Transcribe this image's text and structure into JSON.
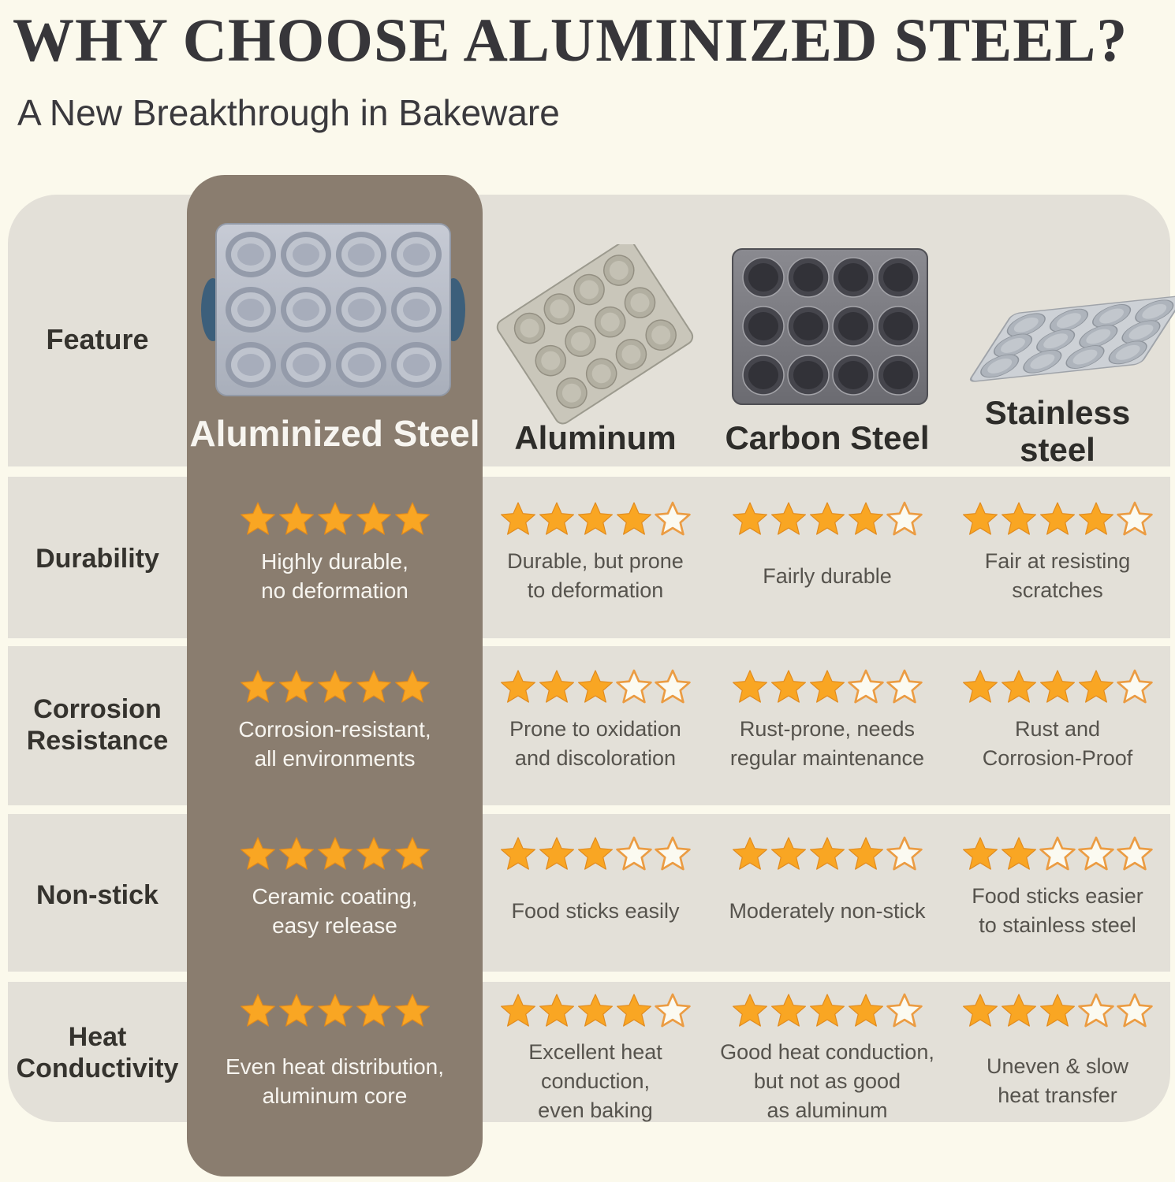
{
  "page": {
    "title": "WHY CHOOSE ALUMINIZED STEEL?",
    "subtitle": "A New Breakthrough in Bakeware"
  },
  "colors": {
    "bg": "#FBF9EC",
    "panel": "#E3E0D8",
    "hl": "#8A7D6F",
    "star-fill": "#F9A623",
    "star-stroke": "#E08A1E",
    "star-empty-fill": "#FBFAF1",
    "star-empty-stroke": "#EB9C43"
  },
  "table": {
    "feature_header": "Feature",
    "columns": [
      {
        "label": "Aluminized Steel",
        "highlighted": true,
        "image": "aluminized-steel-muffin-pan"
      },
      {
        "label": "Aluminum",
        "highlighted": false,
        "image": "aluminum-muffin-pan"
      },
      {
        "label": "Carbon Steel",
        "highlighted": false,
        "image": "carbon-steel-muffin-pan"
      },
      {
        "label": "Stainless\nsteel",
        "highlighted": false,
        "image": "stainless-steel-muffin-pan"
      }
    ],
    "rows": [
      {
        "feature": "Durability",
        "cells": [
          {
            "stars": 5,
            "text": "Highly durable,\nno deformation"
          },
          {
            "stars": 4,
            "text": "Durable, but prone\nto deformation"
          },
          {
            "stars": 4,
            "text": "Fairly durable"
          },
          {
            "stars": 4,
            "text": "Fair at resisting\nscratches"
          }
        ]
      },
      {
        "feature": "Corrosion\nResistance",
        "cells": [
          {
            "stars": 5,
            "text": "Corrosion-resistant,\nall environments"
          },
          {
            "stars": 3,
            "text": "Prone to oxidation\nand discoloration"
          },
          {
            "stars": 3,
            "text": "Rust-prone, needs\nregular maintenance"
          },
          {
            "stars": 4,
            "text": "Rust and\nCorrosion-Proof"
          }
        ]
      },
      {
        "feature": "Non-stick",
        "cells": [
          {
            "stars": 5,
            "text": "Ceramic coating,\neasy release"
          },
          {
            "stars": 3,
            "text": "Food sticks easily"
          },
          {
            "stars": 4,
            "text": "Moderately non-stick"
          },
          {
            "stars": 2,
            "text": "Food sticks easier\nto stainless steel"
          }
        ]
      },
      {
        "feature": "Heat\nConductivity",
        "cells": [
          {
            "stars": 5,
            "text": "Even heat distribution,\naluminum core"
          },
          {
            "stars": 4,
            "text": "Excellent heat\nconduction,\neven baking"
          },
          {
            "stars": 4,
            "text": "Good heat conduction,\nbut not as good\nas aluminum"
          },
          {
            "stars": 3,
            "text": "Uneven & slow\nheat transfer"
          }
        ]
      }
    ]
  },
  "chart_data": {
    "type": "table",
    "title": "WHY CHOOSE ALUMINIZED STEEL?",
    "subtitle": "A New Breakthrough in Bakeware",
    "categories": [
      "Aluminized Steel",
      "Aluminum",
      "Carbon Steel",
      "Stainless steel"
    ],
    "features": [
      "Durability",
      "Corrosion Resistance",
      "Non-stick",
      "Heat Conductivity"
    ],
    "ratings_out_of_5": {
      "Durability": [
        5,
        4,
        4,
        4
      ],
      "Corrosion Resistance": [
        5,
        3,
        3,
        4
      ],
      "Non-stick": [
        5,
        3,
        4,
        2
      ],
      "Heat Conductivity": [
        5,
        4,
        4,
        3
      ]
    },
    "notes": {
      "Durability": [
        "Highly durable, no deformation",
        "Durable, but prone to deformation",
        "Fairly durable",
        "Fair at resisting scratches"
      ],
      "Corrosion Resistance": [
        "Corrosion-resistant, all environments",
        "Prone to oxidation and discoloration",
        "Rust-prone, needs regular maintenance",
        "Rust and Corrosion-Proof"
      ],
      "Non-stick": [
        "Ceramic coating, easy release",
        "Food sticks easily",
        "Moderately non-stick",
        "Food sticks easier to stainless steel"
      ],
      "Heat Conductivity": [
        "Even heat distribution, aluminum core",
        "Excellent heat conduction, even baking",
        "Good heat conduction, but not as good as aluminum",
        "Uneven & slow heat transfer"
      ]
    },
    "highlighted_column": "Aluminized Steel"
  }
}
